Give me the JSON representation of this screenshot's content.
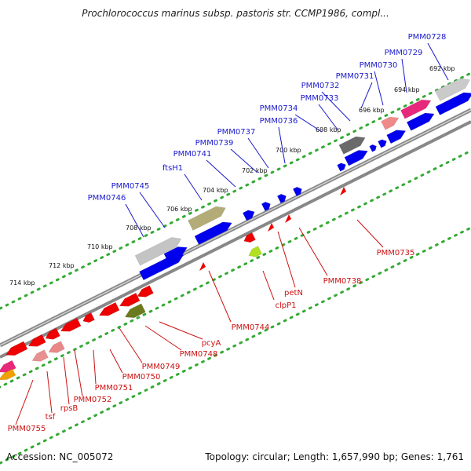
{
  "title": "Prochlorococcus marinus subsp. pastoris str. CCMP1986, compl...",
  "footer": {
    "accession": "Accession: NC_005072",
    "summary": "Topology: circular; Length: 1,657,990 bp; Genes: 1,761"
  },
  "colors": {
    "forward_label": "#1a1acc",
    "reverse_label": "#cc1111",
    "forward_cds": "#0000ee",
    "reverse_cds": "#ee0000",
    "backbone": "#888888",
    "tick_dots": "#33aa33"
  },
  "kbp_ticks": [
    "692 kbp",
    "694 kbp",
    "696 kbp",
    "698 kbp",
    "700 kbp",
    "702 kbp",
    "704 kbp",
    "706 kbp",
    "708 kbp",
    "710 kbp",
    "712 kbp",
    "714 kbp"
  ],
  "forward_genes": [
    "PMM0728",
    "PMM0729",
    "PMM0730",
    "PMM0731",
    "PMM0732",
    "PMM0733",
    "PMM0734",
    "PMM0736",
    "PMM0737",
    "PMM0739",
    "PMM0741",
    "ftsH1",
    "PMM0745",
    "PMM0746"
  ],
  "reverse_genes": [
    "PMM0735",
    "PMM0738",
    "petN",
    "clpP1",
    "PMM0744",
    "pcyA",
    "PMM0748",
    "PMM0749",
    "PMM0750",
    "PMM0751",
    "PMM0752",
    "rpsB",
    "tsf",
    "PMM0755"
  ]
}
